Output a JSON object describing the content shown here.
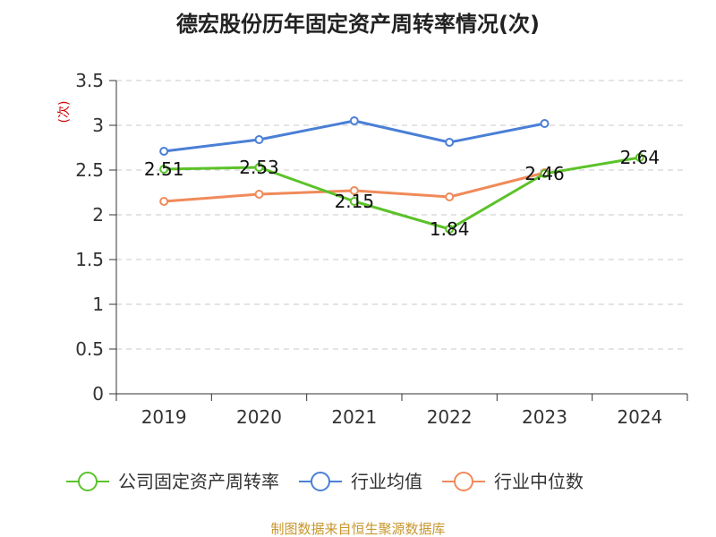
{
  "chart_data": {
    "type": "line",
    "title": "德宏股份历年固定资产周转率情况(次)",
    "ylabel": "(次)",
    "xlabel": "",
    "categories": [
      "2019",
      "2020",
      "2021",
      "2022",
      "2023",
      "2024"
    ],
    "ylim": [
      0,
      3.5
    ],
    "yticks": [
      "0",
      "0.5",
      "1",
      "1.5",
      "2",
      "2.5",
      "3",
      "3.5"
    ],
    "grid": true,
    "legend_position": "bottom",
    "series": [
      {
        "name": "公司固定资产周转率",
        "color": "#5bc229",
        "values": [
          2.51,
          2.53,
          2.15,
          1.84,
          2.46,
          2.64
        ],
        "labels": [
          "2.51",
          "2.53",
          "2.15",
          "1.84",
          "2.46",
          "2.64"
        ]
      },
      {
        "name": "行业均值",
        "color": "#4a7fd6",
        "values": [
          2.71,
          2.84,
          3.05,
          2.81,
          3.02,
          null
        ]
      },
      {
        "name": "行业中位数",
        "color": "#f08a5a",
        "values": [
          2.15,
          2.23,
          2.27,
          2.2,
          2.47,
          null
        ]
      }
    ],
    "source": "制图数据来自恒生聚源数据库"
  }
}
